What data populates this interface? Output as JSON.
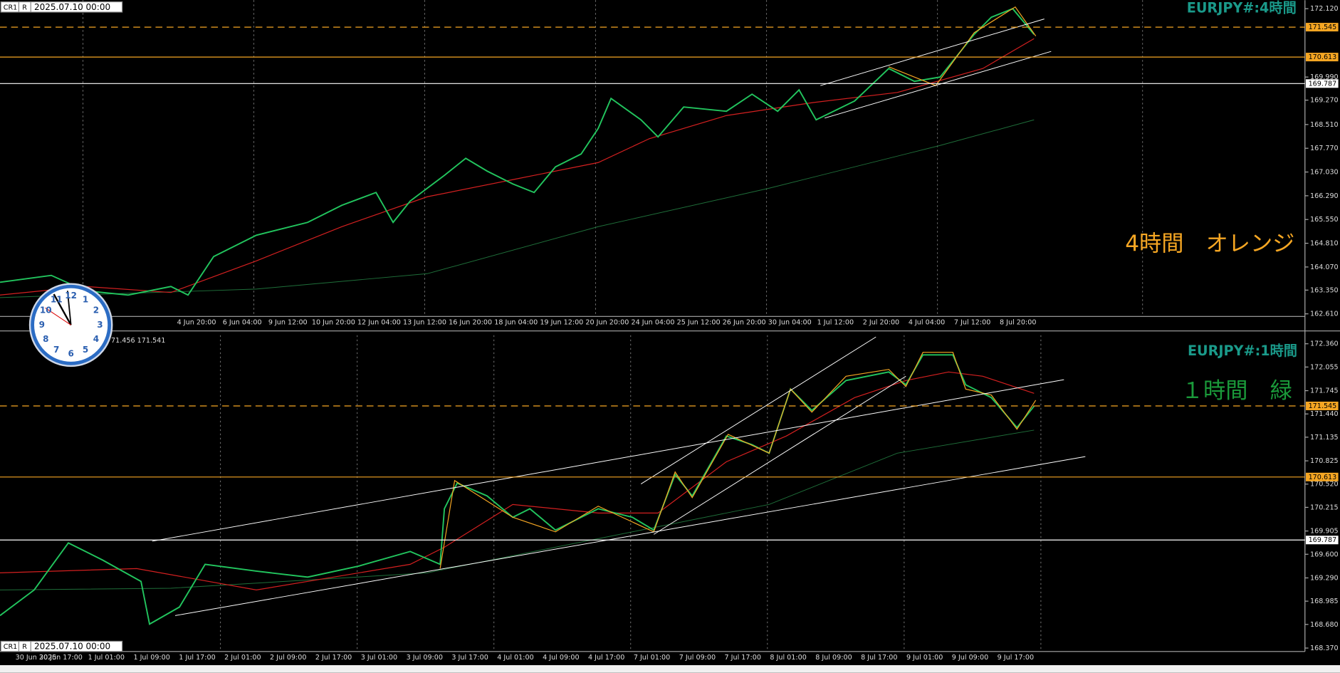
{
  "header": {
    "tag1": "CR1",
    "tag2": "R",
    "datetime": "2025.07.10 00:00"
  },
  "top_panel": {
    "symbol_label": "EURJPY#:4時間",
    "annotation": "4時間　オレンジ",
    "price_labels": [
      {
        "value": 172.12,
        "label": "172.120"
      },
      {
        "value": 169.99,
        "label": "169.990"
      },
      {
        "value": 169.27,
        "label": "169.270"
      },
      {
        "value": 168.51,
        "label": "168.510"
      },
      {
        "value": 167.77,
        "label": "167.770"
      },
      {
        "value": 167.03,
        "label": "167.030"
      },
      {
        "value": 166.29,
        "label": "166.290"
      },
      {
        "value": 165.55,
        "label": "165.550"
      },
      {
        "value": 164.81,
        "label": "164.810"
      },
      {
        "value": 164.07,
        "label": "164.070"
      },
      {
        "value": 163.35,
        "label": "163.350"
      },
      {
        "value": 162.61,
        "label": "162.610"
      }
    ],
    "levels": [
      {
        "value": 171.545,
        "label": "171.545",
        "color": "#f5a623",
        "style": "dashed"
      },
      {
        "value": 170.613,
        "label": "170.613",
        "color": "#f5a623",
        "style": "solid"
      },
      {
        "value": 169.787,
        "label": "169.787",
        "color": "#ffffff",
        "style": "solid"
      }
    ],
    "time_labels": [
      "4 Jun 20:00",
      "6 Jun 04:00",
      "9 Jun 12:00",
      "10 Jun 20:00",
      "12 Jun 04:00",
      "13 Jun 12:00",
      "16 Jun 20:00",
      "18 Jun 04:00",
      "19 Jun 12:00",
      "20 Jun 20:00",
      "24 Jun 04:00",
      "25 Jun 12:00",
      "26 Jun 20:00",
      "30 Jun 04:00",
      "1 Jul 12:00",
      "2 Jul 20:00",
      "4 Jul 04:00",
      "7 Jul 12:00",
      "8 Jul 20:00"
    ]
  },
  "bottom_panel": {
    "symbol_label": "EURJPY#:1時間",
    "annotation": "１時間　緑",
    "info": "71.456 171.541",
    "price_labels": [
      {
        "value": 172.36,
        "label": "172.360"
      },
      {
        "value": 172.055,
        "label": "172.055"
      },
      {
        "value": 171.745,
        "label": "171.745"
      },
      {
        "value": 171.44,
        "label": "171.440"
      },
      {
        "value": 171.135,
        "label": "171.135"
      },
      {
        "value": 170.825,
        "label": "170.825"
      },
      {
        "value": 170.52,
        "label": "170.520"
      },
      {
        "value": 170.215,
        "label": "170.215"
      },
      {
        "value": 169.905,
        "label": "169.905"
      },
      {
        "value": 169.6,
        "label": "169.600"
      },
      {
        "value": 169.29,
        "label": "169.290"
      },
      {
        "value": 168.985,
        "label": "168.985"
      },
      {
        "value": 168.68,
        "label": "168.680"
      },
      {
        "value": 168.37,
        "label": "168.370"
      }
    ],
    "levels": [
      {
        "value": 171.545,
        "label": "171.545",
        "color": "#f5a623",
        "style": "dashed"
      },
      {
        "value": 170.613,
        "label": "170.613",
        "color": "#f5a623",
        "style": "solid"
      },
      {
        "value": 169.787,
        "label": "169.787",
        "color": "#ffffff",
        "style": "solid"
      }
    ],
    "time_labels": [
      "30 Jun 2025",
      "30 Jun 17:00",
      "1 Jul 01:00",
      "1 Jul 09:00",
      "1 Jul 17:00",
      "2 Jul 01:00",
      "2 Jul 09:00",
      "2 Jul 17:00",
      "3 Jul 01:00",
      "3 Jul 09:00",
      "3 Jul 17:00",
      "4 Jul 01:00",
      "4 Jul 09:00",
      "4 Jul 17:00",
      "7 Jul 01:00",
      "7 Jul 09:00",
      "7 Jul 17:00",
      "8 Jul 01:00",
      "8 Jul 09:00",
      "8 Jul 17:00",
      "9 Jul 01:00",
      "9 Jul 09:00",
      "9 Jul 17:00"
    ]
  },
  "clock": {
    "numbers": [
      "12",
      "1",
      "2",
      "3",
      "4",
      "5",
      "6",
      "7",
      "8",
      "9",
      "10",
      "11"
    ]
  }
}
